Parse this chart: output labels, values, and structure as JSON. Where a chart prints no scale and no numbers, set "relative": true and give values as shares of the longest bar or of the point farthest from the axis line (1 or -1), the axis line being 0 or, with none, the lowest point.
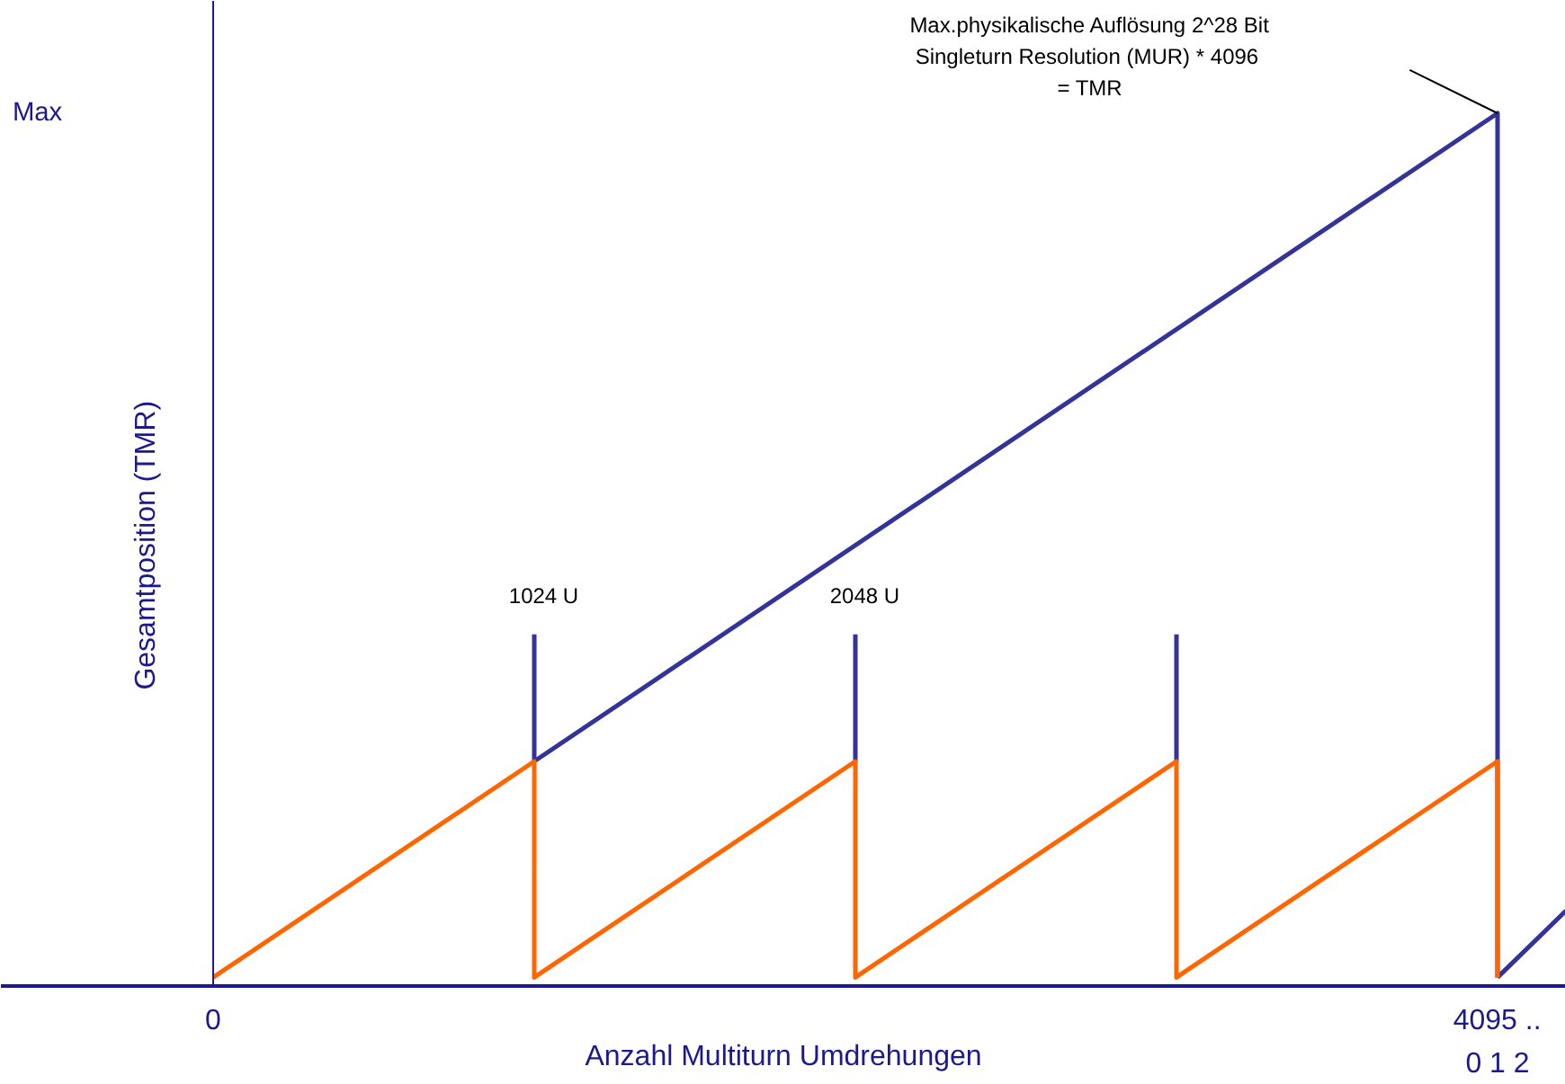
{
  "chart_data": {
    "type": "line",
    "relative": true,
    "xlabel": "Anzahl Multiturn Umdrehungen",
    "ylabel": "Gesamtposition (TMR)",
    "xlim": [
      -677,
      4314
    ],
    "xticks": [
      {
        "value": 0,
        "label": "0"
      },
      {
        "value": 4095,
        "label": "4095 .."
      }
    ],
    "series": [
      {
        "color": "#33339a",
        "x": [
          1024,
          1024,
          null,
          2048,
          2048,
          null,
          3072,
          3072
        ],
        "values": [
          0.25,
          0.397,
          null,
          0.25,
          0.397,
          null,
          0.25,
          0.397
        ]
      },
      {
        "color": "#33339a",
        "x": [
          1024,
          4096,
          4096,
          null,
          4096,
          4314
        ],
        "values": [
          0.25,
          1,
          0,
          null,
          0,
          0.077
        ]
      },
      {
        "color": "#ff6600",
        "x": [
          0,
          1024,
          1024,
          2048,
          2048,
          3072,
          3072,
          4096,
          4096
        ],
        "values": [
          0,
          0.25,
          0,
          0.25,
          0,
          0.25,
          0,
          0.25,
          0
        ]
      }
    ],
    "annotations": [
      "Max",
      {
        "text": "1024 U",
        "x": 1024,
        "y": 0.397
      },
      {
        "text": "2048 U",
        "x": 2048,
        "y": 0.397
      },
      "Max.physikalische Auflösung 2^28 Bit\nSingleturn Resolution (MUR)  * 4096\n= TMR",
      "0 1 2"
    ],
    "ref_lines": [
      {
        "axis": "x",
        "value": 0,
        "color": "#1a1a8c"
      }
    ],
    "grid": false
  }
}
